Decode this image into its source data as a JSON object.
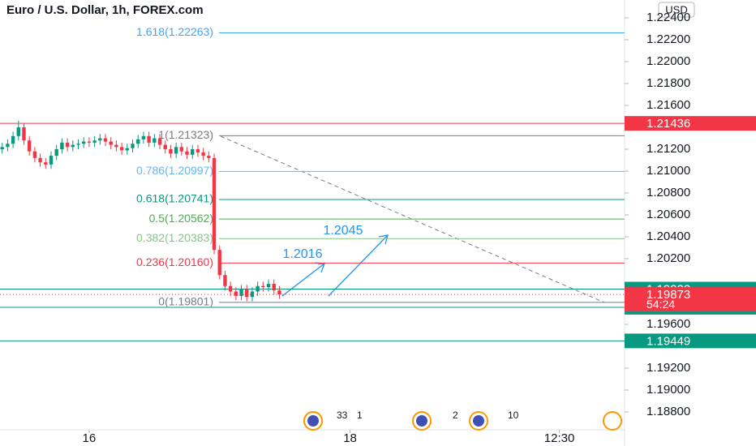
{
  "chart_data": {
    "type": "candlestick",
    "title": "Euro / U.S. Dollar, 1h, FOREX.com",
    "currency": "USD",
    "x": [
      -16,
      -15,
      -14,
      -13,
      -12,
      -11,
      -10,
      -9,
      -8,
      -7,
      -6,
      -5,
      -4,
      -3,
      -2,
      -1,
      0,
      1,
      2,
      3,
      4,
      5,
      6,
      7,
      8,
      9,
      10,
      11,
      12,
      13,
      14,
      15,
      16,
      17,
      18,
      19,
      20,
      21,
      22,
      23,
      24,
      25,
      26,
      27,
      28,
      29,
      30,
      31,
      32,
      33,
      34,
      35
    ],
    "open": [
      1.212,
      1.2122,
      1.2125,
      1.2132,
      1.214,
      1.2128,
      1.2118,
      1.2112,
      1.2108,
      1.2106,
      1.2114,
      1.212,
      1.2126,
      1.2122,
      1.2124,
      1.2125,
      1.2127,
      1.2126,
      1.2128,
      1.213,
      1.2127,
      1.2124,
      1.2122,
      1.2119,
      1.2121,
      1.2125,
      1.2129,
      1.2132,
      1.2126,
      1.213,
      1.2124,
      1.212,
      1.2116,
      1.2122,
      1.2118,
      1.2115,
      1.212,
      1.2117,
      1.2114,
      1.2112,
      1.2028,
      1.2005,
      1.1995,
      1.199,
      1.1986,
      1.1992,
      1.1985,
      1.199,
      1.1995,
      1.1994,
      1.1997,
      1.1991
    ],
    "high": [
      1.2126,
      1.2129,
      1.2136,
      1.2146,
      1.2144,
      1.2132,
      1.2122,
      1.2116,
      1.2112,
      1.2118,
      1.2124,
      1.213,
      1.213,
      1.2128,
      1.2129,
      1.2131,
      1.2131,
      1.2132,
      1.2134,
      1.2134,
      1.2131,
      1.2128,
      1.2126,
      1.2125,
      1.2129,
      1.2133,
      1.2136,
      1.2136,
      1.2134,
      1.2134,
      1.2128,
      1.2124,
      1.2126,
      1.2126,
      1.2122,
      1.2124,
      1.2124,
      1.2121,
      1.2118,
      1.2116,
      1.2032,
      1.2009,
      1.1999,
      1.1994,
      1.1996,
      1.1996,
      1.1994,
      1.1999,
      1.1999,
      1.2001,
      1.2001,
      1.1995
    ],
    "low": [
      1.2116,
      1.2118,
      1.2121,
      1.2128,
      1.2124,
      1.2114,
      1.2108,
      1.2104,
      1.2102,
      1.2102,
      1.211,
      1.2116,
      1.2118,
      1.2118,
      1.212,
      1.2121,
      1.2122,
      1.2122,
      1.2124,
      1.2123,
      1.212,
      1.2118,
      1.2115,
      1.2115,
      1.2117,
      1.2121,
      1.2125,
      1.2122,
      1.2122,
      1.212,
      1.2116,
      1.2112,
      1.2112,
      1.2114,
      1.2111,
      1.2111,
      1.2113,
      1.211,
      1.2108,
      1.2024,
      1.2001,
      1.1991,
      1.1986,
      1.1982,
      1.1982,
      1.1981,
      1.1981,
      1.1986,
      1.199,
      1.199,
      1.1987,
      1.19833
    ],
    "close": [
      1.2122,
      1.2125,
      1.2132,
      1.214,
      1.2128,
      1.2118,
      1.2112,
      1.2108,
      1.2106,
      1.2114,
      1.212,
      1.2126,
      1.2122,
      1.2124,
      1.2125,
      1.2127,
      1.2126,
      1.2128,
      1.213,
      1.2127,
      1.2124,
      1.2122,
      1.2119,
      1.2121,
      1.2125,
      1.2129,
      1.2132,
      1.2126,
      1.213,
      1.2124,
      1.212,
      1.2116,
      1.2122,
      1.2118,
      1.2115,
      1.212,
      1.2117,
      1.2114,
      1.2112,
      1.2028,
      1.2005,
      1.1995,
      1.199,
      1.1986,
      1.1992,
      1.1985,
      1.199,
      1.1995,
      1.1994,
      1.1997,
      1.1991,
      1.19873
    ],
    "up_color": "#089981",
    "down_color": "#f23645",
    "xlim": [
      -16.4,
      98.5
    ],
    "xticks": [
      {
        "value": 0,
        "label": "16"
      },
      {
        "value": 48,
        "label": "18"
      },
      {
        "value": 86.5,
        "label": "12:30"
      }
    ],
    "ylim": [
      1.18637,
      1.22563
    ],
    "yticks": [
      {
        "value": 1.224,
        "label": "1.22400"
      },
      {
        "value": 1.222,
        "label": "1.22200"
      },
      {
        "value": 1.22,
        "label": "1.22000"
      },
      {
        "value": 1.218,
        "label": "1.21800"
      },
      {
        "value": 1.216,
        "label": "1.21600"
      },
      {
        "value": 1.212,
        "label": "1.21200"
      },
      {
        "value": 1.21,
        "label": "1.21000"
      },
      {
        "value": 1.208,
        "label": "1.20800"
      },
      {
        "value": 1.206,
        "label": "1.20600"
      },
      {
        "value": 1.204,
        "label": "1.20400"
      },
      {
        "value": 1.202,
        "label": "1.20200"
      },
      {
        "value": 1.196,
        "label": "1.19600"
      },
      {
        "value": 1.192,
        "label": "1.19200"
      },
      {
        "value": 1.19,
        "label": "1.19000"
      },
      {
        "value": 1.188,
        "label": "1.18800"
      }
    ],
    "fib_levels": [
      {
        "label": "1.618(1.22263)",
        "value": 1.22263,
        "color": "#42a5f5"
      },
      {
        "label": "1(1.21323)",
        "value": 1.21323,
        "color": "#787b86"
      },
      {
        "label": "0.786(1.20997)",
        "value": 1.20997,
        "color": "#64b5f6"
      },
      {
        "label": "0.618(1.20741)",
        "value": 1.20741,
        "color": "#089981"
      },
      {
        "label": "0.5(1.20562)",
        "value": 1.20562,
        "color": "#4caf50"
      },
      {
        "label": "0.382(1.20383)",
        "value": 1.20383,
        "color": "#81c784"
      },
      {
        "label": "0.236(1.20160)",
        "value": 1.2016,
        "color": "#f23645"
      },
      {
        "label": "0(1.19801)",
        "value": 1.19801,
        "color": "#787b86"
      }
    ],
    "price_lines": [
      {
        "value": 1.21436,
        "color": "#f23645"
      },
      {
        "value": 1.19922,
        "color": "#089981"
      },
      {
        "value": 1.19756,
        "color": "#089981"
      },
      {
        "value": 1.19449,
        "color": "#089981"
      }
    ],
    "last_price": {
      "value": 1.19873,
      "countdown": "54:24",
      "color": "#f23645"
    },
    "targets": [
      "1.2016",
      "1.2045"
    ],
    "events": [
      "33",
      "1",
      "2",
      "10"
    ]
  }
}
